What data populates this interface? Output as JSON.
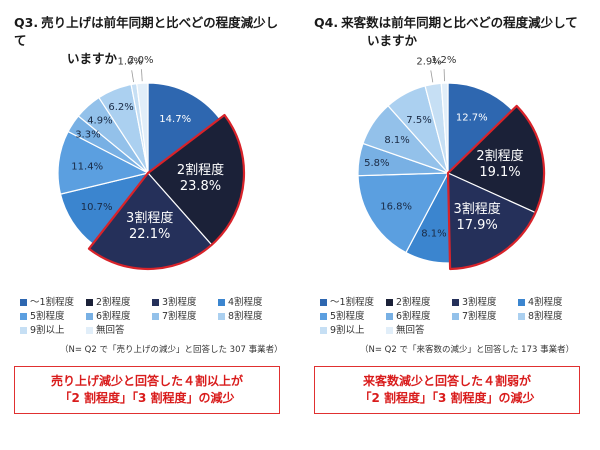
{
  "colors": {
    "s1": "#2e67b0",
    "s2": "#1b2138",
    "s3": "#25305a",
    "s4": "#3b85cf",
    "s5": "#5b9fe0",
    "s6": "#78b0e4",
    "s7": "#93c1ea",
    "s8": "#abd0f0",
    "s9": "#c6dff4",
    "s10": "#e1eef9",
    "highlight": "#d8232a"
  },
  "legend": [
    "～1割程度",
    "2割程度",
    "3割程度",
    "4割程度",
    "5割程度",
    "6割程度",
    "7割程度",
    "8割程度",
    "9割以上",
    "無回答"
  ],
  "chart_data": [
    {
      "type": "pie",
      "title_num": "Q3.",
      "title_line1": "売り上げは前年同期と比べどの程度減少して",
      "title_line2": "いますか",
      "slices": [
        {
          "label": "～1割程度",
          "value": 14.7,
          "value_label": "14.7%"
        },
        {
          "label": "2割程度",
          "value": 23.8,
          "value_label": "2割程度\n23.8%"
        },
        {
          "label": "3割程度",
          "value": 22.1,
          "value_label": "3割程度\n22.1%"
        },
        {
          "label": "4割程度",
          "value": 10.7,
          "value_label": "10.7%"
        },
        {
          "label": "5割程度",
          "value": 11.4,
          "value_label": "11.4%"
        },
        {
          "label": "6割程度",
          "value": 3.3,
          "value_label": "3.3%"
        },
        {
          "label": "7割程度",
          "value": 4.9,
          "value_label": "4.9%"
        },
        {
          "label": "8割程度",
          "value": 6.2,
          "value_label": "6.2%"
        },
        {
          "label": "9割以上",
          "value": 1.0,
          "value_label": "1.0%"
        },
        {
          "label": "無回答",
          "value": 2.0,
          "value_label": "2.0%"
        }
      ],
      "highlighted": [
        "2割程度",
        "3割程度"
      ],
      "note": "（N= Q2 で「売り上げの減少」と回答した 307 事業者）",
      "callout_line1": "売り上げ減少と回答した４割以上が",
      "callout_line2": "「2 割程度」「3 割程度」の減少"
    },
    {
      "type": "pie",
      "title_num": "Q4.",
      "title_line1": "来客数は前年同期と比べどの程度減少して",
      "title_line2": "いますか",
      "slices": [
        {
          "label": "～1割程度",
          "value": 12.7,
          "value_label": "12.7%"
        },
        {
          "label": "2割程度",
          "value": 19.1,
          "value_label": "2割程度\n19.1%"
        },
        {
          "label": "3割程度",
          "value": 17.9,
          "value_label": "3割程度\n17.9%"
        },
        {
          "label": "4割程度",
          "value": 8.1,
          "value_label": "8.1%"
        },
        {
          "label": "5割程度",
          "value": 16.8,
          "value_label": "16.8%"
        },
        {
          "label": "6割程度",
          "value": 5.8,
          "value_label": "5.8%"
        },
        {
          "label": "7割程度",
          "value": 8.1,
          "value_label": "8.1%"
        },
        {
          "label": "8割程度",
          "value": 7.5,
          "value_label": "7.5%"
        },
        {
          "label": "9割以上",
          "value": 2.9,
          "value_label": "2.9%"
        },
        {
          "label": "無回答",
          "value": 1.2,
          "value_label": "1.2%"
        }
      ],
      "highlighted": [
        "2割程度",
        "3割程度"
      ],
      "note": "（N= Q2 で「来客数の減少」と回答した 173 事業者）",
      "callout_line1": "来客数減少と回答した４割弱が",
      "callout_line2": "「2 割程度」「3 割程度」の減少"
    }
  ]
}
